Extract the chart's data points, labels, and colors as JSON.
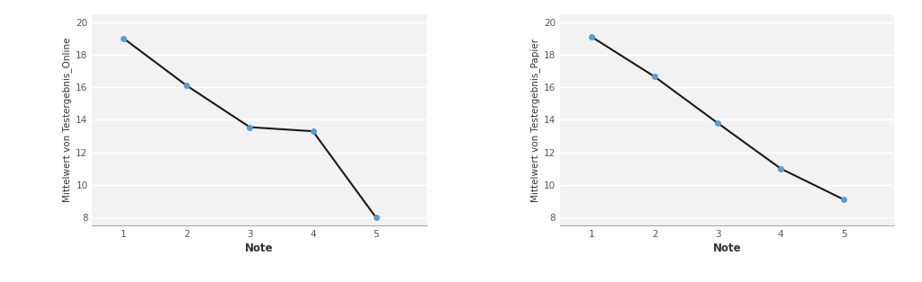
{
  "left": {
    "x": [
      1,
      2,
      3,
      4,
      5
    ],
    "y": [
      19.0,
      16.1,
      13.55,
      13.3,
      8.0
    ],
    "ylabel": "Mittelwert von Testergebnis_Online",
    "xlabel": "Note",
    "ylim": [
      7.5,
      20.5
    ],
    "yticks": [
      8,
      10,
      12,
      14,
      16,
      18,
      20
    ],
    "xticks": [
      1,
      2,
      3,
      4,
      5
    ],
    "line_color": "#1a1a1a",
    "marker_color": "#5b9bd5",
    "marker_size": 4
  },
  "right": {
    "x": [
      1,
      2,
      3,
      4,
      5
    ],
    "y": [
      19.1,
      16.65,
      13.8,
      11.0,
      9.1
    ],
    "ylabel": "Mittelwert von Testergebnis_Papier",
    "xlabel": "Note",
    "ylim": [
      7.5,
      20.5
    ],
    "yticks": [
      8,
      10,
      12,
      14,
      16,
      18,
      20
    ],
    "xticks": [
      1,
      2,
      3,
      4,
      5
    ],
    "line_color": "#1a1a1a",
    "marker_color": "#5b9bd5",
    "marker_size": 4
  },
  "background_color": "#ffffff",
  "plot_bg_color": "#f2f2f2",
  "grid_color": "#ffffff",
  "grid_linewidth": 1.0,
  "tick_labelsize": 7.5,
  "ylabel_fontsize": 7.5,
  "xlabel_fontsize": 8.5,
  "xlabel_fontweight": "bold",
  "spine_color": "#aaaaaa",
  "tick_color": "#555555"
}
